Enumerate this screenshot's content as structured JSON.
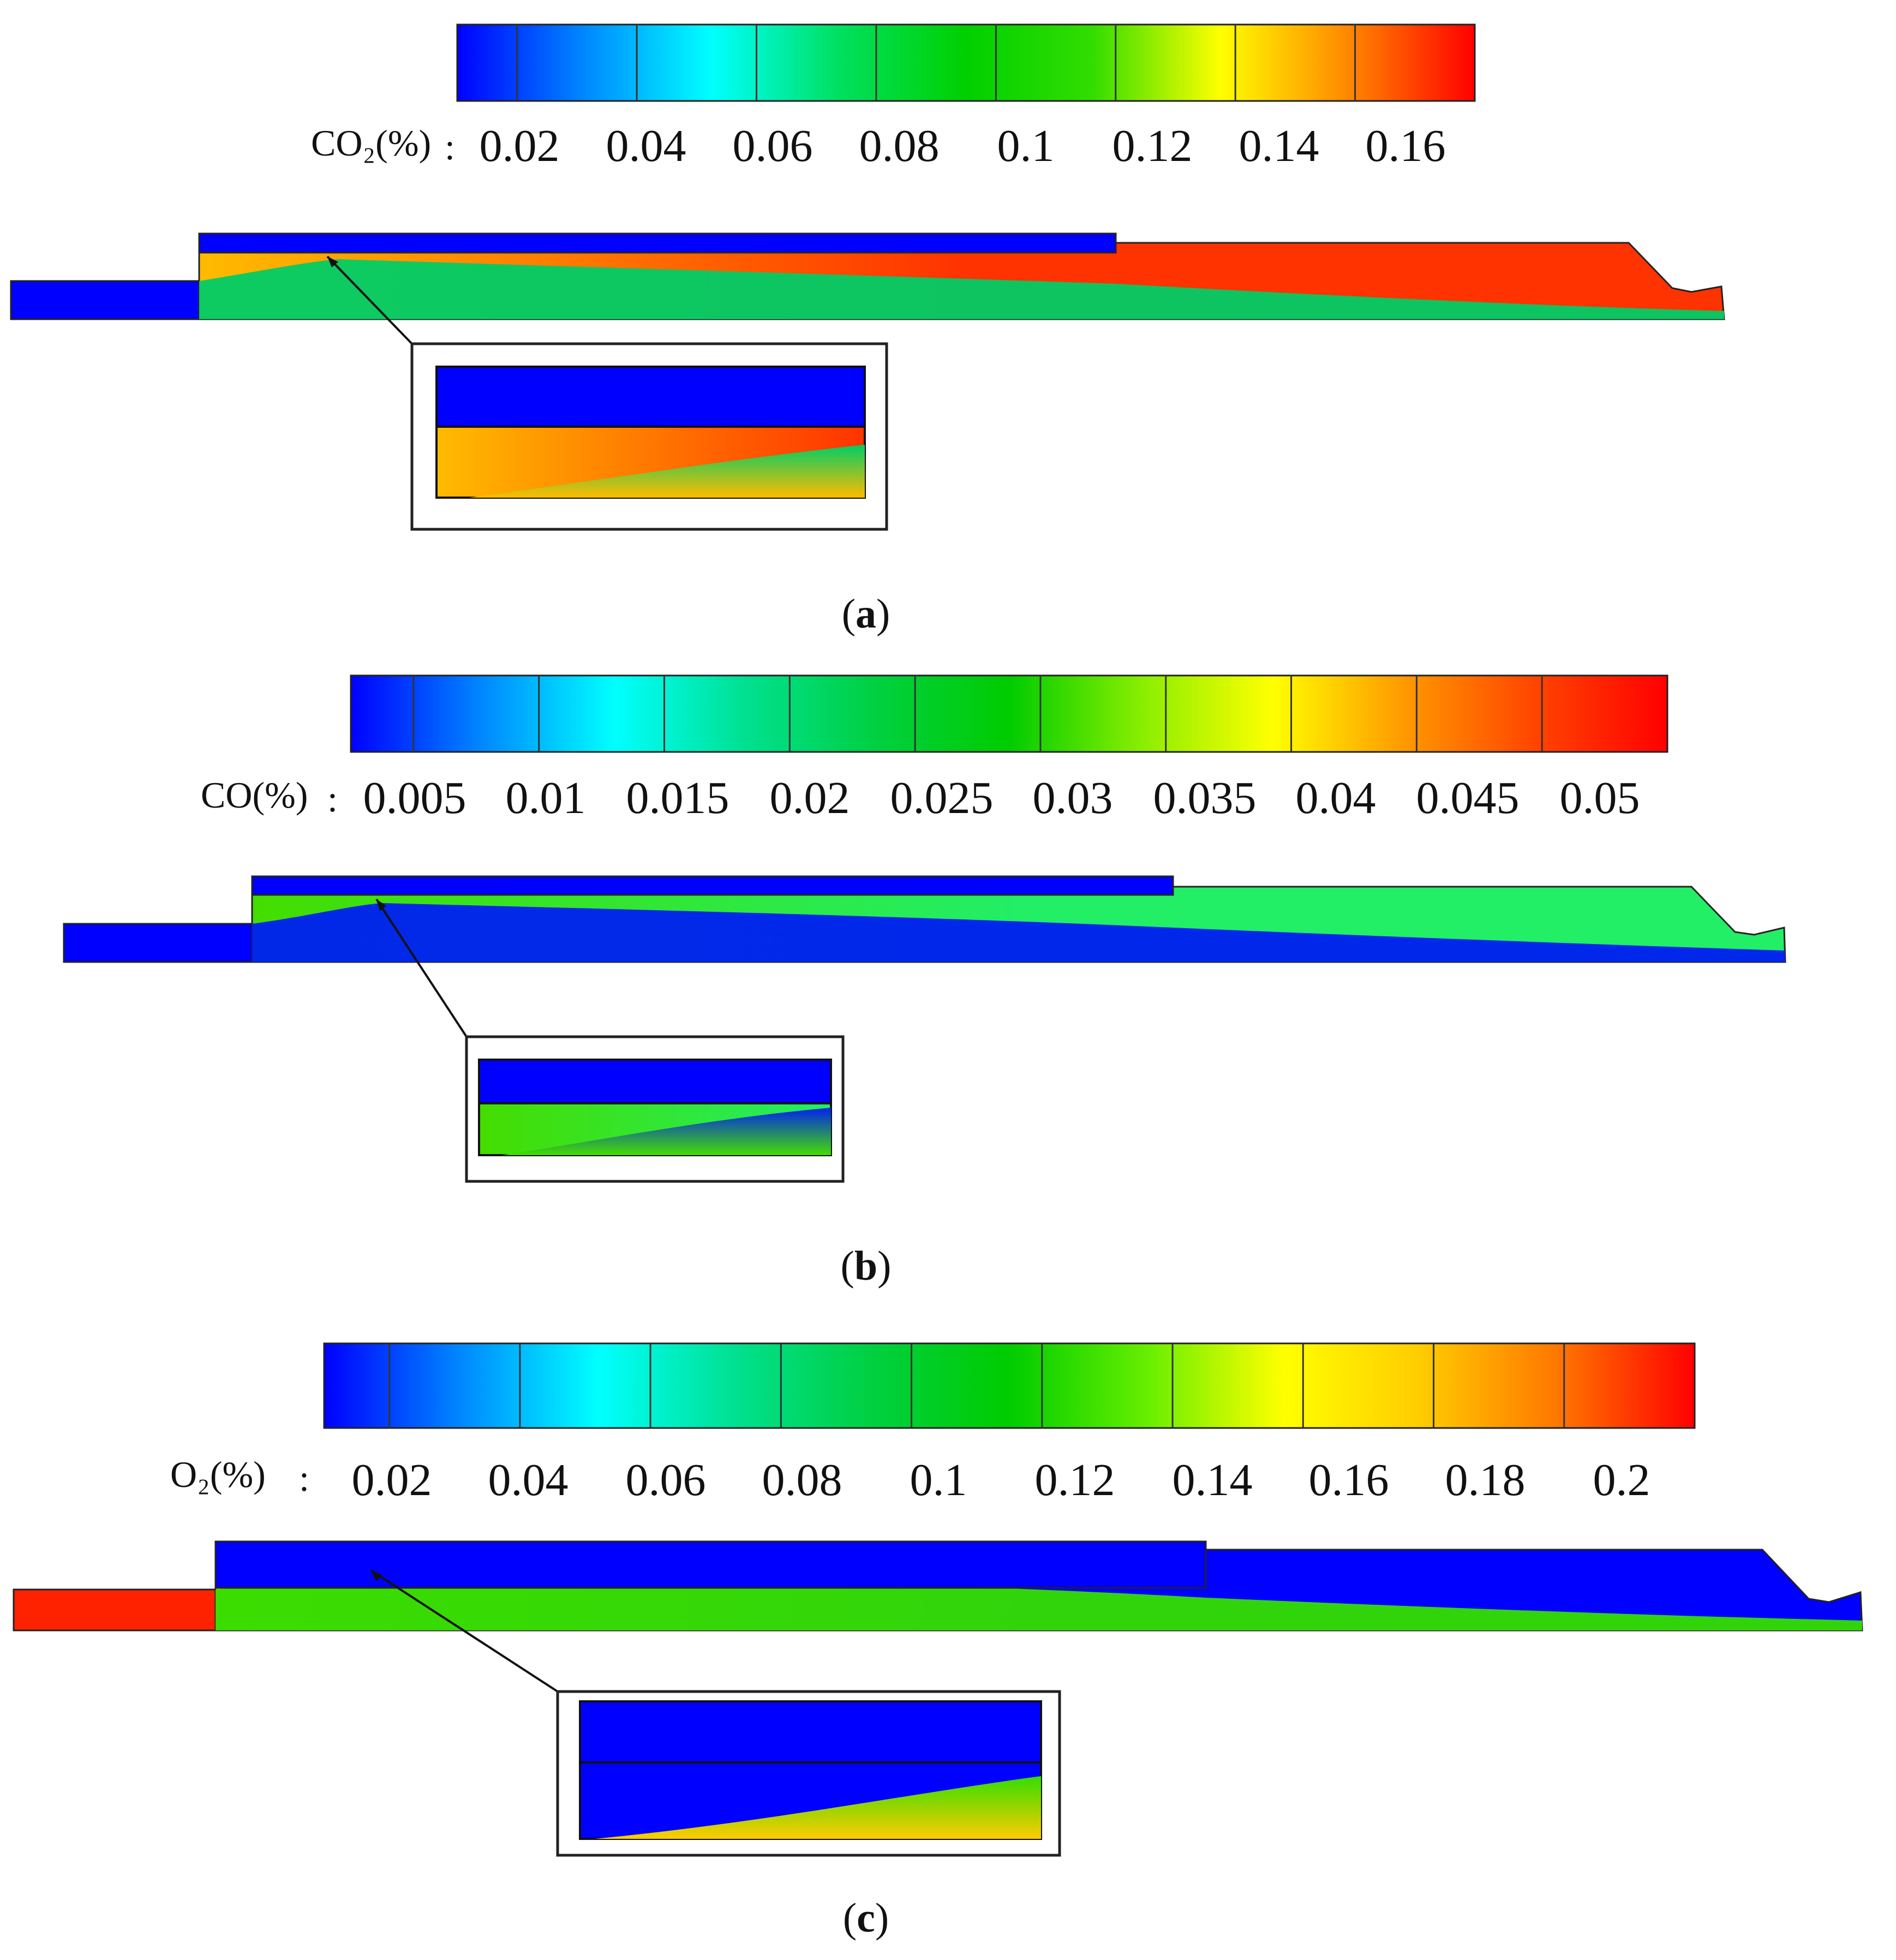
{
  "panels": [
    {
      "id": "a",
      "quantity_label": "CO₂(%)",
      "tick_labels": [
        "0.02",
        "0.04",
        "0.06",
        "0.08",
        "0.1",
        "0.12",
        "0.14",
        "0.16"
      ],
      "colorbar_stops": [
        "#0000ff",
        "#0088ff",
        "#00ffff",
        "#00e060",
        "#00d000",
        "#33dd00",
        "#ffff00",
        "#ff8800",
        "#ff0000"
      ],
      "caption_letter": "a",
      "field": {
        "duct_color": "#0000ff",
        "top_inlet_color": "#0000ff",
        "upper_color": "#ff3300",
        "lower_color": "#00cc66",
        "near_inlet_color": "#ffbb00"
      }
    },
    {
      "id": "b",
      "quantity_label": "CO(%)",
      "tick_labels": [
        "0.005",
        "0.01",
        "0.015",
        "0.02",
        "0.025",
        "0.03",
        "0.035",
        "0.04",
        "0.045",
        "0.05"
      ],
      "colorbar_stops": [
        "#0000ff",
        "#0088ff",
        "#00ffff",
        "#00e090",
        "#00d040",
        "#00cc00",
        "#88ee00",
        "#ffff00",
        "#ff9900",
        "#ff4400",
        "#ff0000"
      ],
      "caption_letter": "b",
      "field": {
        "duct_color": "#0000ff",
        "top_inlet_color": "#0000ff",
        "upper_color": "#22ee66",
        "lower_color": "#0022ee",
        "near_inlet_color": "#44dd00"
      }
    },
    {
      "id": "c",
      "quantity_label": "O₂(%)",
      "tick_labels": [
        "0.02",
        "0.04",
        "0.06",
        "0.08",
        "0.1",
        "0.12",
        "0.14",
        "0.16",
        "0.18",
        "0.2"
      ],
      "colorbar_stops": [
        "#0000ff",
        "#0088ff",
        "#00ffff",
        "#00e090",
        "#00d040",
        "#00cc00",
        "#66ee00",
        "#ffff00",
        "#ffcc00",
        "#ff7700",
        "#ff0000"
      ],
      "caption_letter": "c",
      "field": {
        "duct_color": "#ff2200",
        "top_inlet_color": "#0000ff",
        "upper_color": "#0000ff",
        "lower_color": "#33dd00",
        "near_inlet_color": "#ffcc00"
      }
    }
  ]
}
